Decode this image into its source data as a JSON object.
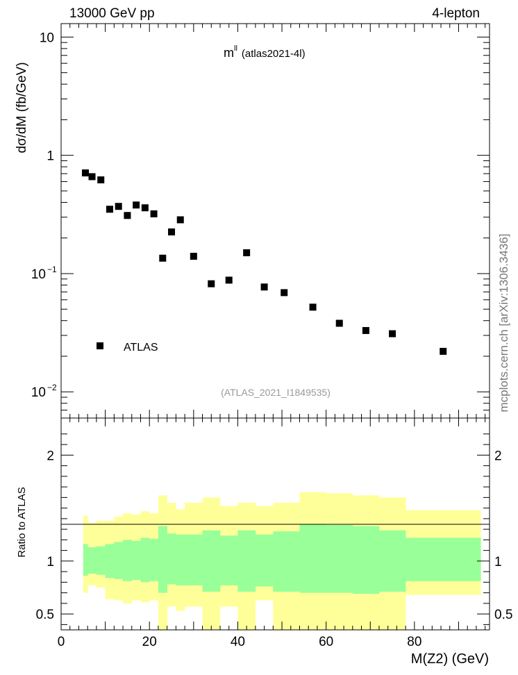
{
  "header": {
    "energy_label": "13000 GeV pp",
    "process_label": "4-lepton",
    "side_label": "mcplots.cern.ch [arXiv:1306.3436]"
  },
  "colors": {
    "band_outer": "#ffff99",
    "band_inner": "#99ff99",
    "marker": "#000000",
    "analysis_id": "#999999"
  },
  "chart_data": [
    {
      "type": "scatter",
      "title": "m",
      "title_superscript": "ll",
      "title_suffix": "(atlas2021-4l)",
      "analysis_id": "(ATLAS_2021_I1849535)",
      "ylabel": "dσ/dM (fb/GeV)",
      "yscale": "log",
      "ylim": [
        0.006,
        13
      ],
      "xlim": [
        0,
        97
      ],
      "y_ticks": [
        {
          "value": 10,
          "label": "10",
          "exp": ""
        },
        {
          "value": 1,
          "label": "1",
          "exp": ""
        },
        {
          "value": 0.1,
          "label": "10",
          "exp": "−1"
        },
        {
          "value": 0.01,
          "label": "10",
          "exp": "−2"
        }
      ],
      "legend": [
        {
          "name": "ATLAS",
          "marker": "square"
        }
      ],
      "legend_position": "bottom-left",
      "series": [
        {
          "name": "ATLAS",
          "x": [
            5.5,
            7,
            9,
            11,
            13,
            15,
            17,
            19,
            21,
            23,
            25,
            27,
            30,
            34,
            38,
            42,
            46,
            50.5,
            57,
            63,
            69,
            75,
            86.5
          ],
          "y": [
            0.71,
            0.66,
            0.62,
            0.35,
            0.37,
            0.31,
            0.38,
            0.36,
            0.32,
            0.135,
            0.225,
            0.285,
            0.14,
            0.082,
            0.088,
            0.15,
            0.077,
            0.069,
            0.052,
            0.038,
            0.033,
            0.031,
            0.022
          ]
        }
      ]
    },
    {
      "type": "area",
      "ylabel": "Ratio to ATLAS",
      "xlabel": "M(Z2) (GeV)",
      "xlim": [
        0,
        97
      ],
      "ylim": [
        0.35,
        2.35
      ],
      "y_ticks": [
        0.5,
        1,
        2
      ],
      "x_ticks": [
        0,
        20,
        40,
        60,
        80
      ],
      "reference_line": 1,
      "bins": [
        5,
        6,
        8,
        10,
        12,
        14,
        16,
        18,
        20,
        22,
        24,
        26,
        28,
        32,
        36,
        40,
        44,
        48,
        54,
        60,
        66,
        72,
        78,
        95
      ],
      "outer_band": {
        "upper": [
          1.43,
          1.36,
          1.38,
          1.38,
          1.42,
          1.45,
          1.44,
          1.47,
          1.45,
          1.62,
          1.55,
          1.49,
          1.55,
          1.6,
          1.52,
          1.55,
          1.52,
          1.55,
          1.65,
          1.64,
          1.62,
          1.6,
          1.48
        ],
        "lower": [
          0.7,
          0.77,
          0.75,
          0.64,
          0.63,
          0.6,
          0.63,
          0.61,
          0.63,
          0.35,
          0.57,
          0.53,
          0.57,
          0.35,
          0.57,
          0.35,
          0.63,
          0.35,
          0.35,
          0.35,
          0.35,
          0.35,
          0.68
        ]
      },
      "inner_band": {
        "upper": [
          1.16,
          1.13,
          1.14,
          1.16,
          1.18,
          1.2,
          1.19,
          1.22,
          1.21,
          1.33,
          1.26,
          1.25,
          1.25,
          1.29,
          1.24,
          1.29,
          1.25,
          1.28,
          1.35,
          1.34,
          1.33,
          1.29,
          1.22
        ],
        "lower": [
          0.86,
          0.88,
          0.87,
          0.84,
          0.83,
          0.81,
          0.82,
          0.8,
          0.81,
          0.7,
          0.78,
          0.77,
          0.77,
          0.71,
          0.77,
          0.71,
          0.76,
          0.71,
          0.7,
          0.7,
          0.69,
          0.71,
          0.81
        ]
      }
    }
  ]
}
